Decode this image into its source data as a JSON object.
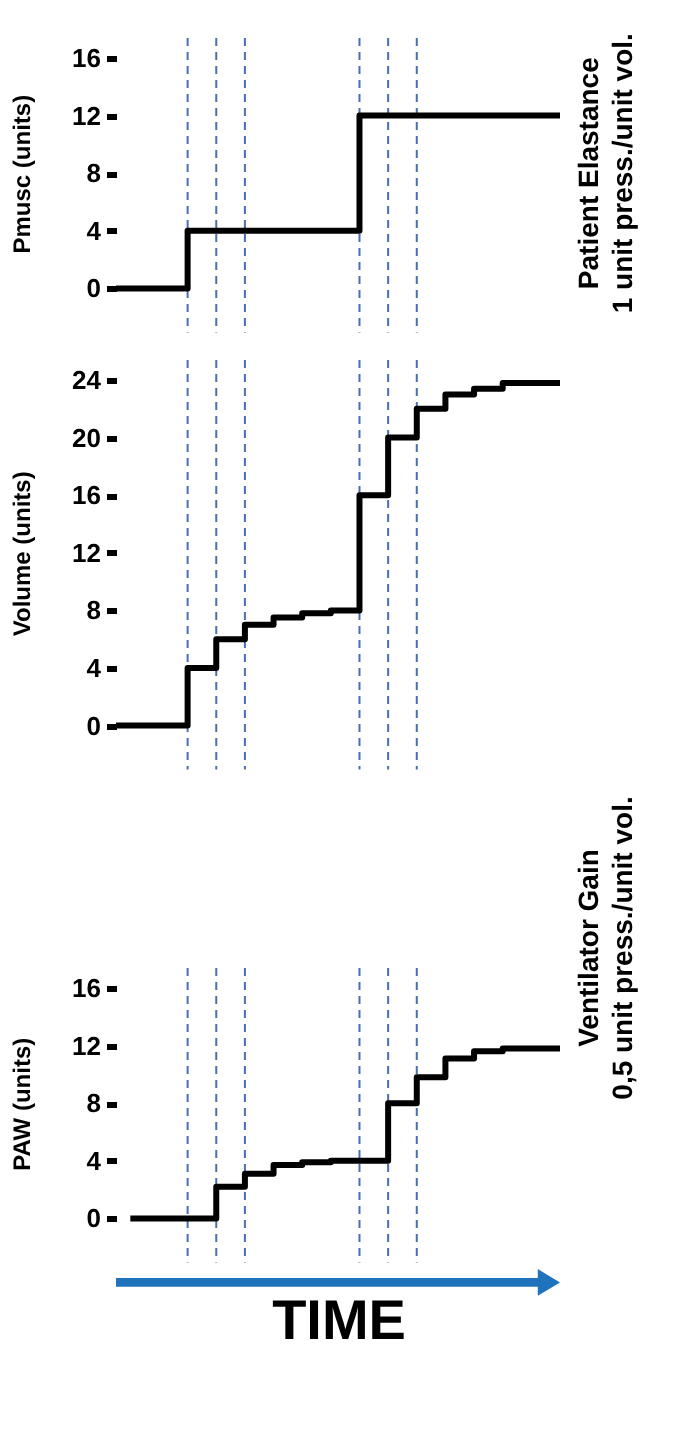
{
  "chart_data": [
    {
      "type": "step",
      "ylabel": "Pmusc (units)",
      "categories": [
        null,
        null,
        null,
        null,
        null,
        null,
        null,
        null,
        null,
        null,
        null,
        null,
        null,
        null,
        null,
        null,
        null,
        null,
        null,
        null,
        null,
        null,
        null,
        null,
        null,
        null,
        null,
        null,
        null,
        null,
        null,
        null
      ],
      "series": [
        {
          "color": "#000000",
          "values": [
            0,
            0,
            0,
            0,
            0,
            4,
            4,
            4,
            4,
            4,
            4,
            4,
            4,
            4,
            4,
            4,
            4,
            12,
            12,
            12,
            12,
            12,
            12,
            12,
            12,
            12,
            12,
            12,
            12,
            12,
            12,
            12
          ]
        }
      ],
      "ylim": [
        0,
        16
      ],
      "yticks": [
        0,
        4,
        8,
        12,
        16
      ],
      "tick_labels": "y",
      "grid": "x",
      "annotations": [
        "Patient Elastance\n1 unit press./unit vol."
      ]
    },
    {
      "type": "step",
      "ylabel": "Volume (units)",
      "categories": [
        null,
        null,
        null,
        null,
        null,
        null,
        null,
        null,
        null,
        null,
        null,
        null,
        null,
        null,
        null,
        null,
        null,
        null,
        null,
        null,
        null,
        null,
        null,
        null,
        null,
        null,
        null,
        null,
        null,
        null,
        null,
        null
      ],
      "series": [
        {
          "color": "#000000",
          "values": [
            0,
            0,
            0,
            0,
            0,
            4,
            4,
            6,
            6,
            7,
            7,
            7.5,
            7.5,
            7.8,
            7.8,
            8,
            8,
            16,
            16,
            20,
            20,
            22,
            22,
            23,
            23,
            23.4,
            23.4,
            23.8,
            23.8,
            23.8,
            23.8,
            23.8
          ]
        }
      ],
      "ylim": [
        0,
        24
      ],
      "yticks": [
        0,
        4,
        8,
        12,
        16,
        20,
        24
      ],
      "tick_labels": "y",
      "grid": "x"
    },
    {
      "type": "step",
      "ylabel": "PAW (units)",
      "xlabel": "TIME",
      "categories": [
        null,
        null,
        null,
        null,
        null,
        null,
        null,
        null,
        null,
        null,
        null,
        null,
        null,
        null,
        null,
        null,
        null,
        null,
        null,
        null,
        null,
        null,
        null,
        null,
        null,
        null,
        null,
        null,
        null,
        null,
        null,
        null
      ],
      "series": [
        {
          "color": "#000000",
          "values": [
            null,
            0,
            0,
            0,
            0,
            0,
            0,
            2.2,
            2.2,
            3.1,
            3.1,
            3.7,
            3.7,
            3.9,
            3.9,
            4,
            4,
            4,
            4,
            8,
            8,
            9.8,
            9.8,
            11.1,
            11.1,
            11.6,
            11.6,
            11.8,
            11.8,
            11.8,
            11.8,
            11.8
          ]
        }
      ],
      "ylim": [
        0,
        16
      ],
      "yticks": [
        0,
        4,
        8,
        12,
        16
      ],
      "tick_labels": "y",
      "grid": "x",
      "annotations": [
        "Ventilator Gain\n0,5 unit press./unit vol."
      ]
    }
  ]
}
